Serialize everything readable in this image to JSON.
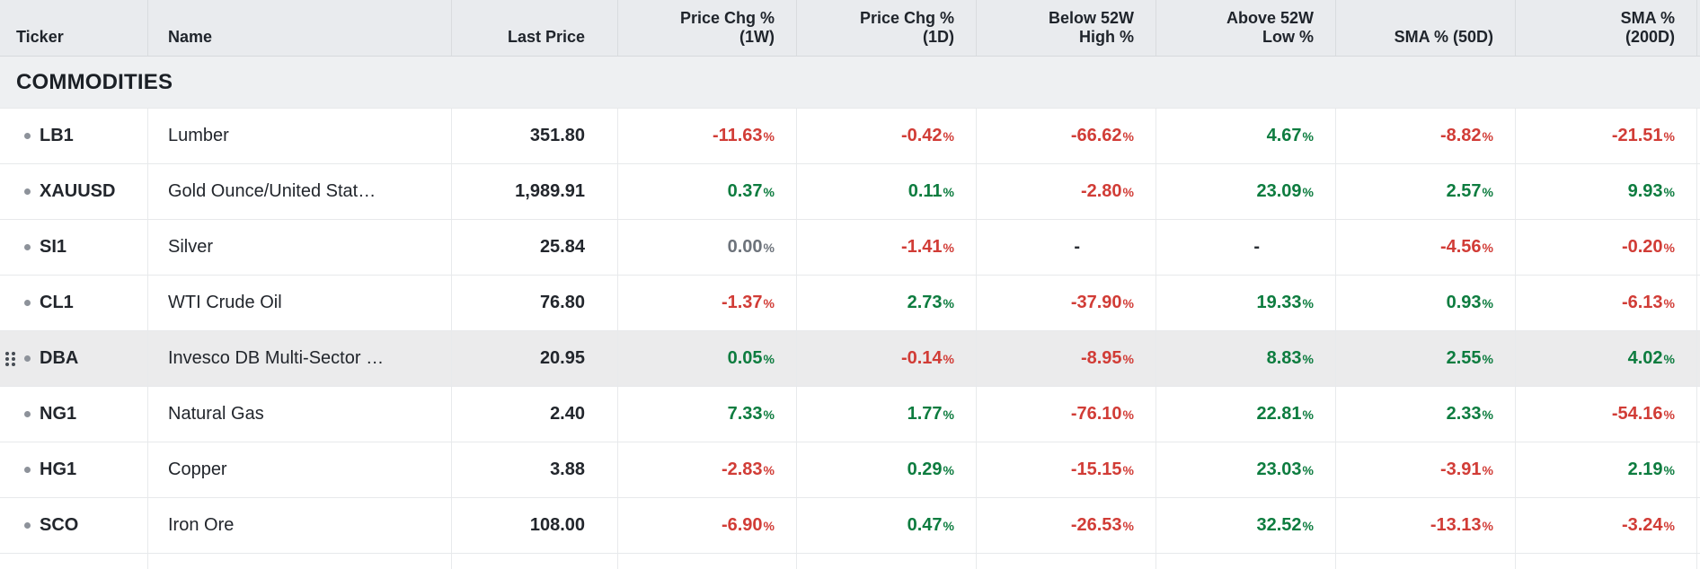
{
  "table": {
    "percent_suffix": "%",
    "section": "COMMODITIES",
    "colors": {
      "positive": "#0d7c3f",
      "negative": "#d13c36",
      "neutral": "#6d737b",
      "header_bg": "#e9ebee",
      "section_bg": "#eef0f2",
      "highlight_row_bg": "#ebebec"
    },
    "columns": [
      {
        "id": "ticker",
        "lines": [
          "Ticker"
        ],
        "align": "left"
      },
      {
        "id": "name",
        "lines": [
          "Name"
        ],
        "align": "left"
      },
      {
        "id": "last_price",
        "lines": [
          "Last Price"
        ],
        "align": "right"
      },
      {
        "id": "price_chg_1w",
        "lines": [
          "Price Chg %",
          "(1W)"
        ],
        "align": "right"
      },
      {
        "id": "price_chg_1d",
        "lines": [
          "Price Chg %",
          "(1D)"
        ],
        "align": "right"
      },
      {
        "id": "below_52w_high",
        "lines": [
          "Below 52W",
          "High %"
        ],
        "align": "right"
      },
      {
        "id": "above_52w_low",
        "lines": [
          "Above 52W",
          "Low %"
        ],
        "align": "right"
      },
      {
        "id": "sma_50d",
        "lines": [
          "SMA % (50D)"
        ],
        "align": "right"
      },
      {
        "id": "sma_200d",
        "lines": [
          "SMA %",
          "(200D)"
        ],
        "align": "right"
      }
    ],
    "rows": [
      {
        "ticker": "LB1",
        "name": "Lumber",
        "last_price": "351.80",
        "price_chg_1w": "-11.63",
        "price_chg_1d": "-0.42",
        "below_52w_high": "-66.62",
        "above_52w_low": "4.67",
        "sma_50d": "-8.82",
        "sma_200d": "-21.51",
        "highlighted": false,
        "drag_handle": false
      },
      {
        "ticker": "XAUUSD",
        "name": "Gold Ounce/United Stat…",
        "last_price": "1,989.91",
        "price_chg_1w": "0.37",
        "price_chg_1d": "0.11",
        "below_52w_high": "-2.80",
        "above_52w_low": "23.09",
        "sma_50d": "2.57",
        "sma_200d": "9.93",
        "highlighted": false,
        "drag_handle": false
      },
      {
        "ticker": "SI1",
        "name": "Silver",
        "last_price": "25.84",
        "price_chg_1w": "0.00",
        "price_chg_1d": "-1.41",
        "below_52w_high": "-",
        "above_52w_low": "-",
        "sma_50d": "-4.56",
        "sma_200d": "-0.20",
        "highlighted": false,
        "drag_handle": false
      },
      {
        "ticker": "CL1",
        "name": "WTI Crude Oil",
        "last_price": "76.80",
        "price_chg_1w": "-1.37",
        "price_chg_1d": "2.73",
        "below_52w_high": "-37.90",
        "above_52w_low": "19.33",
        "sma_50d": "0.93",
        "sma_200d": "-6.13",
        "highlighted": false,
        "drag_handle": false
      },
      {
        "ticker": "DBA",
        "name": "Invesco DB Multi-Sector …",
        "last_price": "20.95",
        "price_chg_1w": "0.05",
        "price_chg_1d": "-0.14",
        "below_52w_high": "-8.95",
        "above_52w_low": "8.83",
        "sma_50d": "2.55",
        "sma_200d": "4.02",
        "highlighted": true,
        "drag_handle": true
      },
      {
        "ticker": "NG1",
        "name": "Natural Gas",
        "last_price": "2.40",
        "price_chg_1w": "7.33",
        "price_chg_1d": "1.77",
        "below_52w_high": "-76.10",
        "above_52w_low": "22.81",
        "sma_50d": "2.33",
        "sma_200d": "-54.16",
        "highlighted": false,
        "drag_handle": false
      },
      {
        "ticker": "HG1",
        "name": "Copper",
        "last_price": "3.88",
        "price_chg_1w": "-2.83",
        "price_chg_1d": "0.29",
        "below_52w_high": "-15.15",
        "above_52w_low": "23.03",
        "sma_50d": "-3.91",
        "sma_200d": "2.19",
        "highlighted": false,
        "drag_handle": false
      },
      {
        "ticker": "SCO",
        "name": "Iron Ore",
        "last_price": "108.00",
        "price_chg_1w": "-6.90",
        "price_chg_1d": "0.47",
        "below_52w_high": "-26.53",
        "above_52w_low": "32.52",
        "sma_50d": "-13.13",
        "sma_200d": "-3.24",
        "highlighted": false,
        "drag_handle": false
      }
    ]
  }
}
